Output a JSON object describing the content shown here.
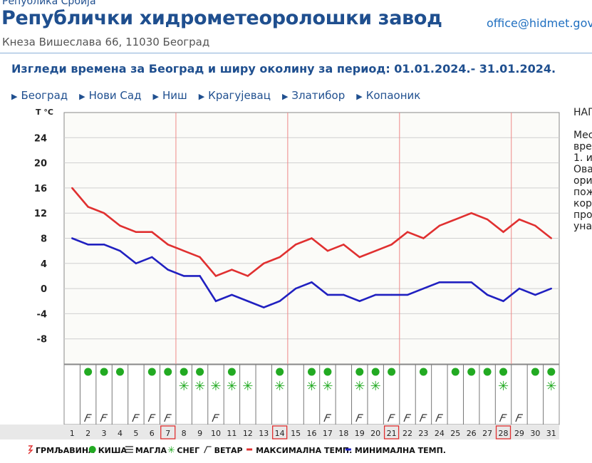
{
  "header": {
    "org_top": "Република Србија",
    "org_title": "Републички хидрометеоролошки завод",
    "address": "Кнеза Вишеслава 66, 11030  Београд",
    "email": "office@hidmet.gov"
  },
  "subtitle": "Изгледи времена за Београд и ширу околину за период: 01.01.2024.- 31.01.2024.",
  "cities": [
    "Београд",
    "Нови Сад",
    "Ниш",
    "Крагујевац",
    "Златибор",
    "Копаоник"
  ],
  "side_text": [
    "НАП",
    "",
    "Мес",
    "вре",
    "1. и",
    "Ова",
    "ори",
    "пож",
    "кор",
    "про",
    "уна"
  ],
  "colors": {
    "brand": "#1f4f8f",
    "max_line": "#e03030",
    "min_line": "#2020c0",
    "rain": "#22aa22",
    "snow": "#22aa22",
    "weekend": "#e03030"
  },
  "chart_data": {
    "type": "line",
    "ylabel": "T °C",
    "ylim": [
      -12,
      28
    ],
    "yticks": [
      24,
      20,
      16,
      12,
      8,
      4,
      0,
      -4,
      -8
    ],
    "categories": [
      "1",
      "2",
      "3",
      "4",
      "5",
      "6",
      "7",
      "8",
      "9",
      "10",
      "11",
      "12",
      "13",
      "14",
      "15",
      "16",
      "17",
      "18",
      "19",
      "20",
      "21",
      "22",
      "23",
      "24",
      "25",
      "26",
      "27",
      "28",
      "29",
      "30",
      "31"
    ],
    "series": [
      {
        "name": "МАКСИМАЛНА ТЕМП.",
        "color": "#e03030",
        "values": [
          16,
          13,
          12,
          10,
          9,
          9,
          7,
          6,
          5,
          2,
          3,
          2,
          4,
          5,
          7,
          8,
          6,
          7,
          5,
          6,
          7,
          9,
          8,
          10,
          11,
          12,
          11,
          9,
          11,
          10,
          8
        ]
      },
      {
        "name": "МИНИМАЛНА ТЕМП.",
        "color": "#2020c0",
        "values": [
          8,
          7,
          7,
          6,
          4,
          5,
          3,
          2,
          2,
          -2,
          -1,
          -2,
          -3,
          -2,
          0,
          1,
          -1,
          -1,
          -2,
          -1,
          -1,
          -1,
          0,
          1,
          1,
          1,
          -1,
          -2,
          0,
          -1,
          0
        ]
      }
    ],
    "weekly_markers": [
      7,
      14,
      21,
      28
    ],
    "rain_days": [
      2,
      3,
      4,
      6,
      7,
      8,
      9,
      11,
      14,
      16,
      17,
      19,
      20,
      21,
      23,
      25,
      26,
      27,
      28,
      30,
      31
    ],
    "snow_days": [
      8,
      9,
      10,
      11,
      12,
      14,
      16,
      17,
      19,
      20,
      28,
      31
    ],
    "wind_days": [
      2,
      3,
      5,
      6,
      7,
      10,
      17,
      19,
      21,
      22,
      23,
      24,
      28,
      29
    ],
    "legend": [
      {
        "symbol": "thunder",
        "label": "ГРМЉАВИНА"
      },
      {
        "symbol": "rain",
        "label": "КИША"
      },
      {
        "symbol": "fog",
        "label": "МАГЛА"
      },
      {
        "symbol": "snow",
        "label": "СНЕГ"
      },
      {
        "symbol": "wind",
        "label": "ВЕТАР"
      },
      {
        "symbol": "max",
        "label": "МАКСИМАЛНА ТЕМП."
      },
      {
        "symbol": "min",
        "label": "МИНИМАЛНА ТЕМП."
      }
    ]
  }
}
